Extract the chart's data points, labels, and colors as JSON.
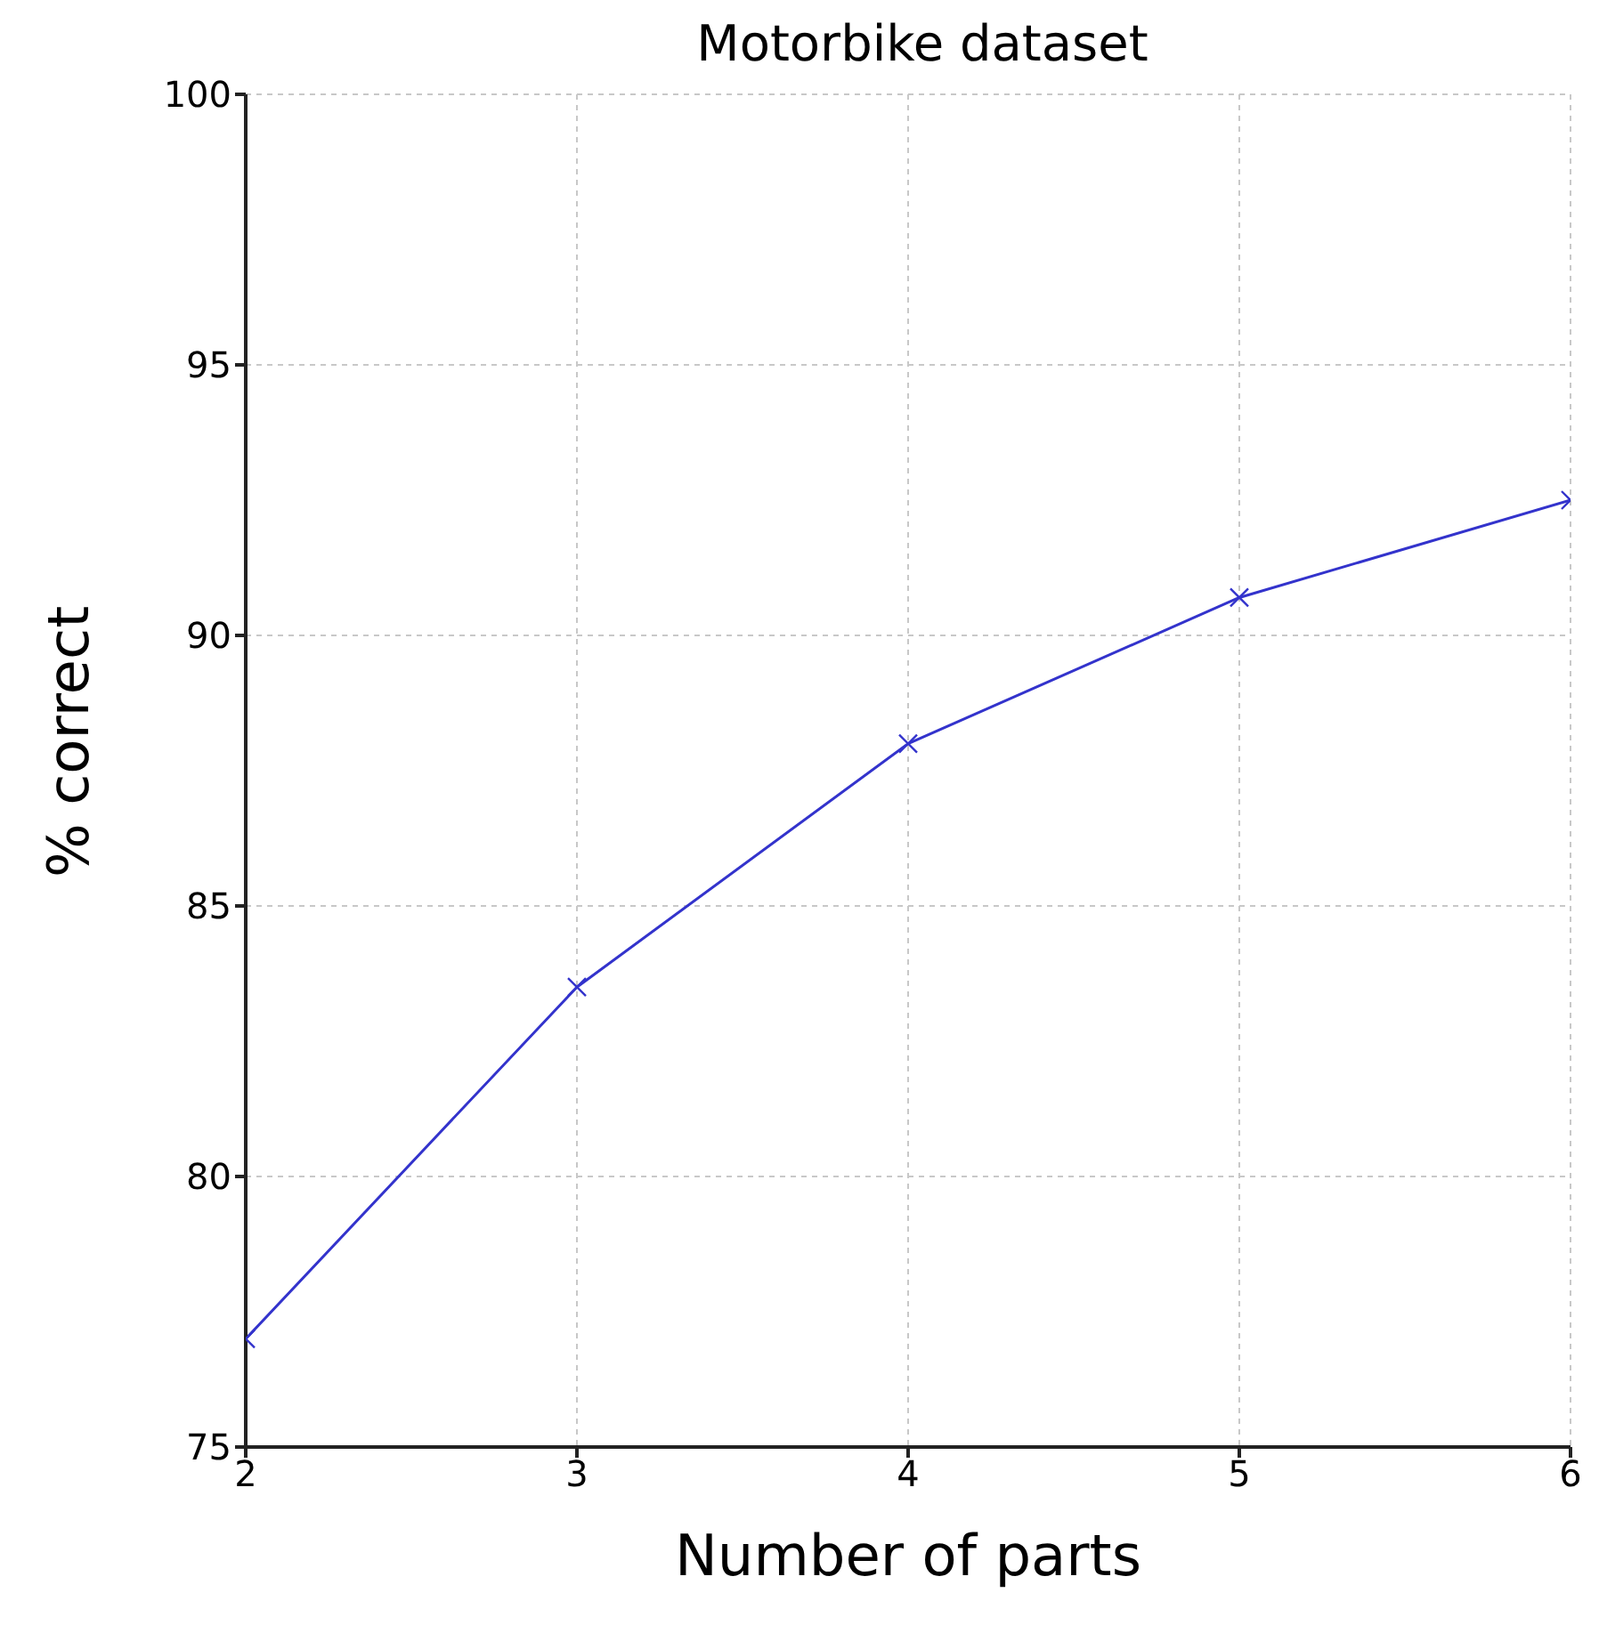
{
  "chart_data": {
    "type": "line",
    "title": "Motorbike dataset",
    "xlabel": "Number of parts",
    "ylabel": "% correct",
    "x": [
      2,
      3,
      4,
      5,
      6
    ],
    "series": [
      {
        "color": "#3333cc",
        "values": [
          77,
          83.5,
          88,
          90.7,
          92.5
        ]
      }
    ],
    "xlim": [
      2,
      6
    ],
    "xticks": [
      2,
      3,
      4,
      5,
      6
    ],
    "ylim": [
      75,
      100
    ],
    "yticks": [
      75,
      80,
      85,
      90,
      95,
      100
    ],
    "grid": true,
    "marker": "cross",
    "line_style": "solid"
  }
}
